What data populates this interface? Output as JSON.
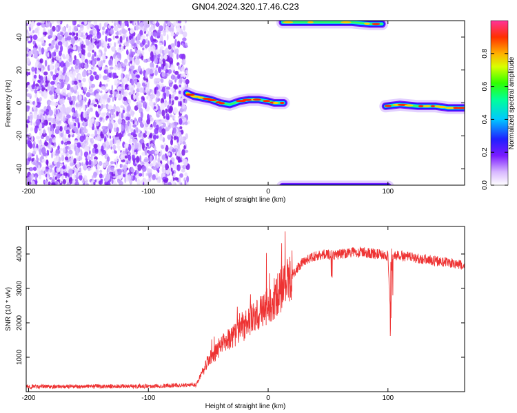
{
  "title": "GN04.2024.320.17.46.C23",
  "chart_data": [
    {
      "type": "heatmap",
      "xlabel": "Height of straight line (km)",
      "ylabel": "Frequency (Hz)",
      "xlim": [
        -202,
        164
      ],
      "ylim": [
        -50,
        50
      ],
      "xticks": [
        -200,
        -100,
        0,
        100
      ],
      "yticks": [
        -40,
        -20,
        0,
        20,
        40
      ],
      "colorbar": {
        "label": "Normalized spectral amplitude",
        "range": [
          0,
          1
        ],
        "ticks": [
          "0.0",
          "0.2",
          "0.4",
          "0.6",
          "0.8"
        ]
      },
      "noise_region": {
        "x": [
          -202,
          -68
        ],
        "y": [
          -50,
          50
        ]
      },
      "tracks": [
        {
          "x": [
            -68,
            -62,
            -55,
            -48,
            -40,
            -32,
            -24,
            -16,
            -8,
            0,
            5,
            13
          ],
          "y": [
            6,
            4,
            3,
            2,
            0,
            -1,
            1,
            2,
            2,
            1,
            0,
            0
          ]
        },
        {
          "x": [
            98,
            110,
            125,
            140,
            150,
            164
          ],
          "y": [
            -2,
            -1,
            -2,
            -2,
            -3,
            -3
          ]
        },
        {
          "x": [
            12,
            30,
            50,
            70,
            90,
            100
          ],
          "y": [
            -51,
            -51,
            -51,
            -51,
            -51,
            -51
          ]
        },
        {
          "x": [
            12,
            40,
            70,
            85,
            95
          ],
          "y": [
            49,
            49,
            49,
            48,
            48
          ]
        }
      ]
    },
    {
      "type": "line",
      "xlabel": "Height of straight line (km)",
      "ylabel": "SNR (10 * v/v)",
      "xlim": [
        -202,
        164
      ],
      "ylim": [
        0,
        4800
      ],
      "xticks": [
        -200,
        -100,
        0,
        100
      ],
      "yticks": [
        1000,
        2000,
        3000,
        4000
      ],
      "color": "#ee3333",
      "x": [
        -202,
        -150,
        -100,
        -60,
        -55,
        -50,
        -40,
        -30,
        -20,
        -10,
        0,
        10,
        20,
        30,
        40,
        50,
        55,
        60,
        70,
        80,
        90,
        100,
        102,
        104,
        110,
        120,
        130,
        140,
        150,
        164
      ],
      "y": [
        150,
        150,
        160,
        200,
        600,
        900,
        1300,
        1600,
        1900,
        2200,
        2500,
        2900,
        3400,
        3800,
        3950,
        4000,
        3950,
        4000,
        4050,
        4050,
        4000,
        3950,
        2200,
        3950,
        3950,
        3900,
        3850,
        3800,
        3750,
        3650
      ]
    }
  ]
}
